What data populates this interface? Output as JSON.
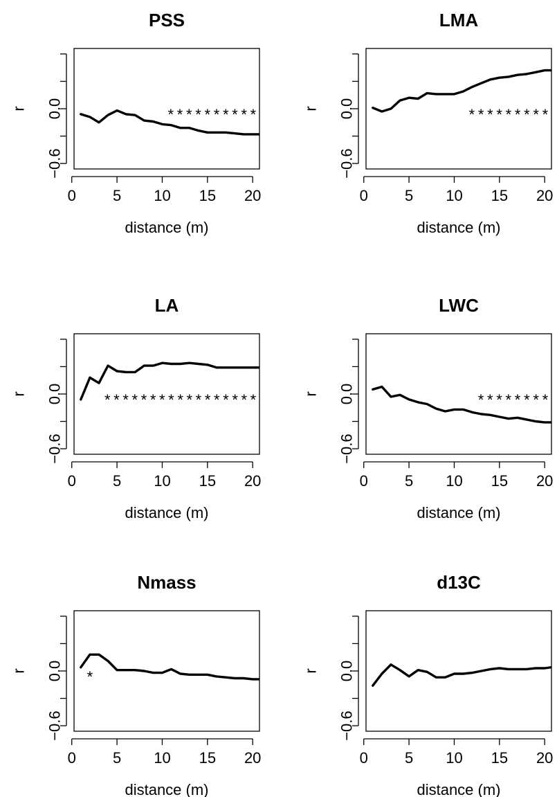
{
  "chart_data": [
    {
      "type": "line",
      "title": "PSS",
      "xlabel": "distance (m)",
      "ylabel": "r",
      "xlim": [
        0.25,
        20.75
      ],
      "ylim": [
        -0.66,
        0.66
      ],
      "xticks": [
        0,
        5,
        10,
        15,
        20
      ],
      "xtick_labels": [
        "0",
        "5",
        "10",
        "15",
        "20"
      ],
      "yticks": [
        -0.6,
        0.0
      ],
      "ytick_labels": [
        "-0.6",
        "0.0"
      ],
      "yticks_unlabeled": [
        -0.3,
        0.3,
        0.6
      ],
      "significance_text": "**********",
      "significance_first_distance": 11,
      "significance_last_distance": 20,
      "x": [
        1,
        2,
        3,
        4,
        5,
        6,
        7,
        8,
        9,
        10,
        11,
        12,
        13,
        14,
        15,
        16,
        17,
        18,
        19,
        20,
        20.75
      ],
      "y": [
        -0.06,
        -0.09,
        -0.15,
        -0.07,
        -0.02,
        -0.06,
        -0.07,
        -0.13,
        -0.14,
        -0.17,
        -0.18,
        -0.21,
        -0.21,
        -0.24,
        -0.26,
        -0.26,
        -0.26,
        -0.27,
        -0.28,
        -0.28,
        -0.28
      ]
    },
    {
      "type": "line",
      "title": "LMA",
      "xlabel": "distance (m)",
      "ylabel": "r",
      "xlim": [
        0.25,
        20.75
      ],
      "ylim": [
        -0.66,
        0.66
      ],
      "xticks": [
        0,
        5,
        10,
        15,
        20
      ],
      "xtick_labels": [
        "0",
        "5",
        "10",
        "15",
        "20"
      ],
      "yticks": [
        -0.6,
        0.0
      ],
      "ytick_labels": [
        "-0.6",
        "0.0"
      ],
      "yticks_unlabeled": [
        -0.3,
        0.3,
        0.6
      ],
      "significance_text": "*********",
      "significance_first_distance": 12,
      "significance_last_distance": 20,
      "x": [
        1,
        2,
        3,
        4,
        5,
        6,
        7,
        8,
        9,
        10,
        11,
        12,
        13,
        14,
        15,
        16,
        17,
        18,
        19,
        20,
        20.75
      ],
      "y": [
        0.01,
        -0.03,
        0.0,
        0.09,
        0.12,
        0.11,
        0.17,
        0.16,
        0.16,
        0.16,
        0.19,
        0.24,
        0.28,
        0.32,
        0.34,
        0.35,
        0.37,
        0.38,
        0.4,
        0.42,
        0.42
      ]
    },
    {
      "type": "line",
      "title": "LA",
      "xlabel": "distance (m)",
      "ylabel": "r",
      "xlim": [
        0.25,
        20.75
      ],
      "ylim": [
        -0.66,
        0.66
      ],
      "xticks": [
        0,
        5,
        10,
        15,
        20
      ],
      "xtick_labels": [
        "0",
        "5",
        "10",
        "15",
        "20"
      ],
      "yticks": [
        -0.6,
        0.0
      ],
      "ytick_labels": [
        "-0.6",
        "0.0"
      ],
      "yticks_unlabeled": [
        -0.3,
        0.3,
        0.6
      ],
      "significance_text": "*****************",
      "significance_first_distance": 4,
      "significance_last_distance": 20,
      "x": [
        1,
        2,
        3,
        4,
        5,
        6,
        7,
        8,
        9,
        10,
        11,
        12,
        13,
        14,
        15,
        16,
        17,
        18,
        19,
        20,
        20.75
      ],
      "y": [
        -0.06,
        0.18,
        0.12,
        0.31,
        0.25,
        0.24,
        0.24,
        0.31,
        0.31,
        0.34,
        0.33,
        0.33,
        0.34,
        0.33,
        0.32,
        0.29,
        0.29,
        0.29,
        0.29,
        0.29,
        0.29
      ]
    },
    {
      "type": "line",
      "title": "LWC",
      "xlabel": "distance (m)",
      "ylabel": "r",
      "xlim": [
        0.25,
        20.75
      ],
      "ylim": [
        -0.66,
        0.66
      ],
      "xticks": [
        0,
        5,
        10,
        15,
        20
      ],
      "xtick_labels": [
        "0",
        "5",
        "10",
        "15",
        "20"
      ],
      "yticks": [
        -0.6,
        0.0
      ],
      "ytick_labels": [
        "-0.6",
        "0.0"
      ],
      "yticks_unlabeled": [
        -0.3,
        0.3,
        0.6
      ],
      "significance_text": "********",
      "significance_first_distance": 13,
      "significance_last_distance": 20,
      "x": [
        1,
        2,
        3,
        4,
        5,
        6,
        7,
        8,
        9,
        10,
        11,
        12,
        13,
        14,
        15,
        16,
        17,
        18,
        19,
        20,
        20.75
      ],
      "y": [
        0.05,
        0.08,
        -0.03,
        -0.01,
        -0.06,
        -0.09,
        -0.11,
        -0.16,
        -0.19,
        -0.17,
        -0.17,
        -0.2,
        -0.22,
        -0.23,
        -0.25,
        -0.27,
        -0.26,
        -0.28,
        -0.3,
        -0.31,
        -0.31
      ]
    },
    {
      "type": "line",
      "title": "Nmass",
      "xlabel": "distance (m)",
      "ylabel": "r",
      "xlim": [
        0.25,
        20.75
      ],
      "ylim": [
        -0.66,
        0.66
      ],
      "xticks": [
        0,
        5,
        10,
        15,
        20
      ],
      "xtick_labels": [
        "0",
        "5",
        "10",
        "15",
        "20"
      ],
      "yticks": [
        -0.6,
        0.0
      ],
      "ytick_labels": [
        "-0.6",
        "0.0"
      ],
      "yticks_unlabeled": [
        -0.3,
        0.3,
        0.6
      ],
      "significance_text": "*",
      "significance_first_distance": 2,
      "significance_last_distance": 2,
      "x": [
        1,
        2,
        3,
        4,
        5,
        6,
        7,
        8,
        9,
        10,
        11,
        12,
        13,
        14,
        15,
        16,
        17,
        18,
        19,
        20,
        20.75
      ],
      "y": [
        0.04,
        0.18,
        0.18,
        0.11,
        0.01,
        0.01,
        0.01,
        0.0,
        -0.02,
        -0.02,
        0.02,
        -0.03,
        -0.04,
        -0.04,
        -0.04,
        -0.06,
        -0.07,
        -0.08,
        -0.08,
        -0.09,
        -0.09
      ]
    },
    {
      "type": "line",
      "title": "d13C",
      "xlabel": "distance (m)",
      "ylabel": "r",
      "xlim": [
        0.25,
        20.75
      ],
      "ylim": [
        -0.66,
        0.66
      ],
      "xticks": [
        0,
        5,
        10,
        15,
        20
      ],
      "xtick_labels": [
        "0",
        "5",
        "10",
        "15",
        "20"
      ],
      "yticks": [
        -0.6,
        0.0
      ],
      "ytick_labels": [
        "-0.6",
        "0.0"
      ],
      "yticks_unlabeled": [
        -0.3,
        0.3,
        0.6
      ],
      "significance_text": "",
      "x": [
        1,
        2,
        3,
        4,
        5,
        6,
        7,
        8,
        9,
        10,
        11,
        12,
        13,
        14,
        15,
        16,
        17,
        18,
        19,
        20,
        20.75
      ],
      "y": [
        -0.16,
        -0.03,
        0.07,
        0.01,
        -0.06,
        0.01,
        -0.01,
        -0.07,
        -0.07,
        -0.03,
        -0.03,
        -0.02,
        0.0,
        0.02,
        0.03,
        0.02,
        0.02,
        0.02,
        0.03,
        0.03,
        0.04
      ]
    }
  ]
}
